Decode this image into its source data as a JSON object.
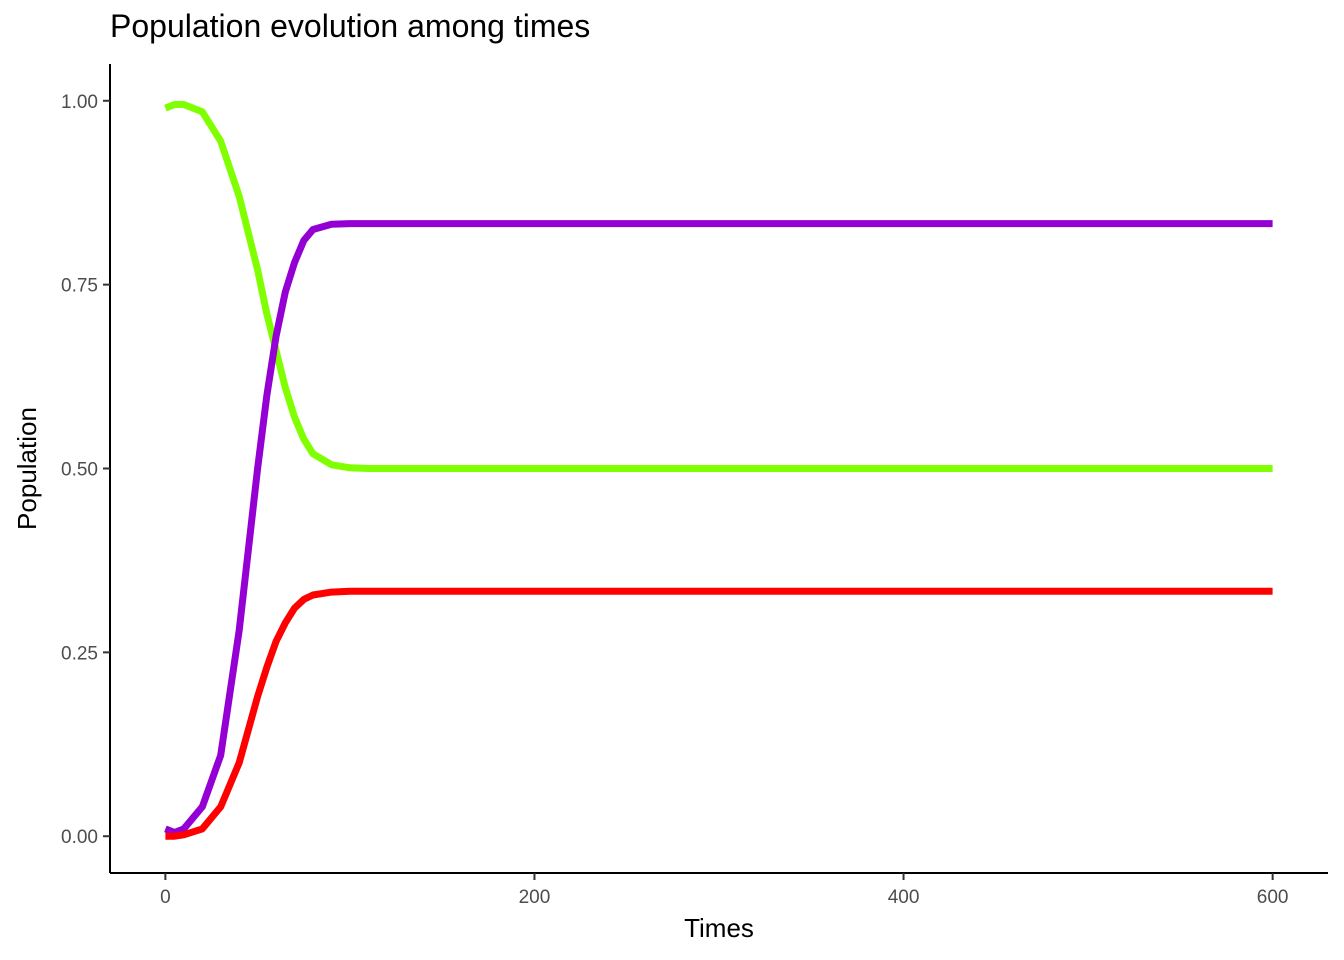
{
  "chart_data": {
    "type": "line",
    "title": "Population evolution among times",
    "xlabel": "Times",
    "ylabel": "Population",
    "xlim": [
      -30,
      630
    ],
    "ylim": [
      -0.05,
      1.05
    ],
    "x_ticks": [
      0,
      200,
      400,
      600
    ],
    "x_tick_labels": [
      "0",
      "200",
      "400",
      "600"
    ],
    "y_ticks": [
      0,
      0.25,
      0.5,
      0.75,
      1.0
    ],
    "y_tick_labels": [
      "0.00",
      "0.25",
      "0.50",
      "0.75",
      "1.00"
    ],
    "grid": false,
    "legend": "none",
    "x": [
      0,
      5,
      10,
      20,
      30,
      40,
      50,
      55,
      60,
      65,
      70,
      75,
      80,
      90,
      100,
      110,
      120,
      150,
      200,
      300,
      400,
      500,
      600
    ],
    "series": [
      {
        "color": "#7FFF00",
        "values": [
          0.99,
          0.995,
          0.995,
          0.985,
          0.945,
          0.87,
          0.77,
          0.71,
          0.66,
          0.61,
          0.57,
          0.54,
          0.52,
          0.505,
          0.501,
          0.5,
          0.5,
          0.5,
          0.5,
          0.5,
          0.5,
          0.5,
          0.5
        ]
      },
      {
        "color": "#9400D3",
        "values": [
          0.01,
          0.005,
          0.01,
          0.04,
          0.11,
          0.28,
          0.5,
          0.6,
          0.68,
          0.74,
          0.78,
          0.81,
          0.825,
          0.832,
          0.833,
          0.833,
          0.833,
          0.833,
          0.833,
          0.833,
          0.833,
          0.833,
          0.833
        ]
      },
      {
        "color": "#FF0000",
        "values": [
          0.0,
          0.0,
          0.002,
          0.01,
          0.04,
          0.1,
          0.19,
          0.23,
          0.265,
          0.29,
          0.31,
          0.322,
          0.328,
          0.332,
          0.333,
          0.333,
          0.333,
          0.333,
          0.333,
          0.333,
          0.333,
          0.333,
          0.333
        ]
      }
    ]
  }
}
